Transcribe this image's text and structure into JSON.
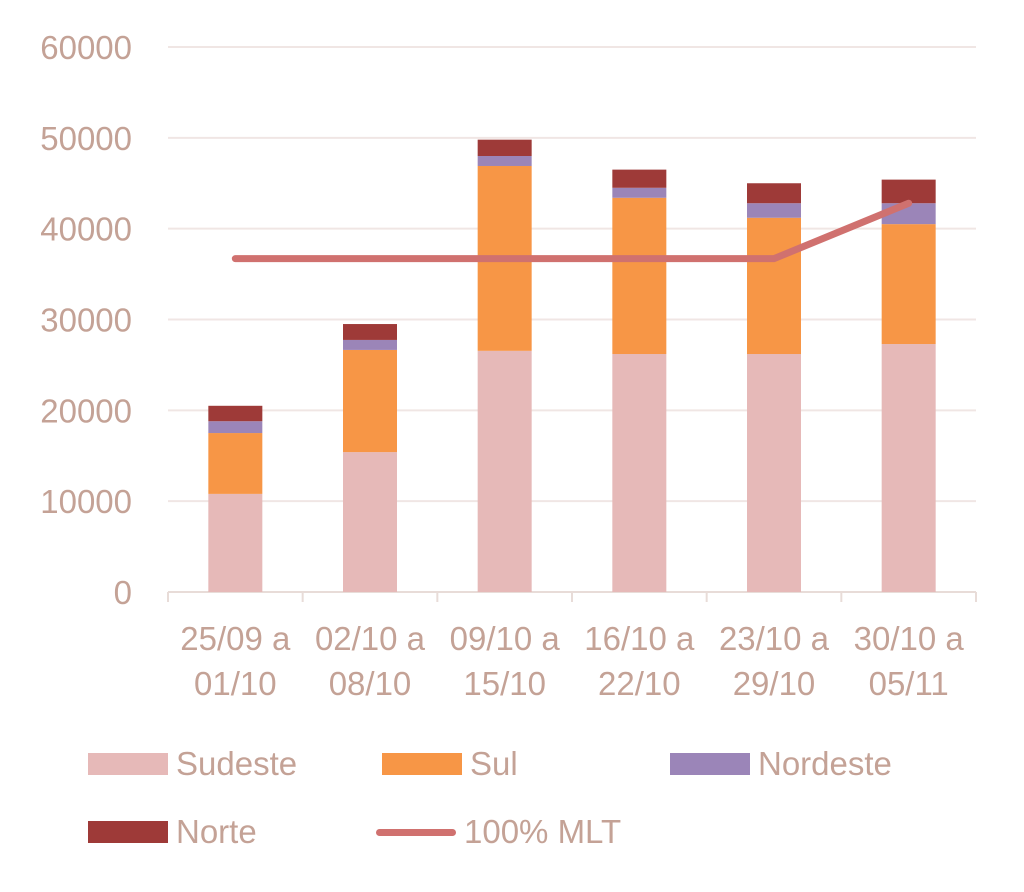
{
  "chart_data": {
    "type": "bar",
    "stacked": true,
    "title": "",
    "xlabel": "",
    "ylabel": "",
    "ylim": [
      0,
      60000
    ],
    "yticks": [
      "0",
      "10000",
      "20000",
      "30000",
      "40000",
      "50000",
      "60000"
    ],
    "categories": [
      [
        "25/09 a",
        "01/10"
      ],
      [
        "02/10 a",
        "08/10"
      ],
      [
        "09/10 a",
        "15/10"
      ],
      [
        "16/10 a",
        "22/10"
      ],
      [
        "23/10 a",
        "29/10"
      ],
      [
        "30/10 a",
        "05/11"
      ]
    ],
    "series": [
      {
        "name": "Sudeste",
        "color": "#e6b9b8",
        "values": [
          10800,
          15400,
          26550,
          26200,
          26200,
          27300
        ]
      },
      {
        "name": "Sul",
        "color": "#f79646",
        "values": [
          6700,
          11250,
          20350,
          17200,
          15000,
          13200
        ]
      },
      {
        "name": "Nordeste",
        "color": "#9b85b8",
        "values": [
          1300,
          1100,
          1100,
          1100,
          1600,
          2300
        ]
      },
      {
        "name": "Norte",
        "color": "#9e3a38",
        "values": [
          1700,
          1750,
          1800,
          2000,
          2200,
          2600
        ]
      }
    ],
    "line": {
      "name": "100% MLT",
      "color": "#d0716f",
      "values": [
        36700,
        36700,
        36700,
        36700,
        36700,
        42800
      ]
    },
    "grid": true,
    "legend": "bottom"
  }
}
